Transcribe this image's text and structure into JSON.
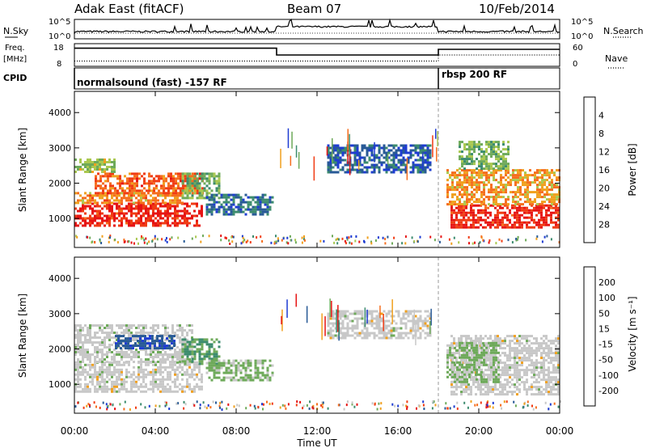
{
  "header": {
    "station": "Adak East (fitACF)",
    "beam": "Beam 07",
    "date": "10/Feb/2014"
  },
  "strip_labels": {
    "nsky": "N.Sky",
    "nsearch": "N.Search",
    "freq_line1": "Freq.",
    "freq_line2": "[MHz]",
    "nave": "Nave",
    "cpid": "CPID",
    "nsky_tick_hi": "10^5",
    "nsky_tick_lo": "10^0",
    "nsearch_tick_hi": "10^5",
    "nsearch_tick_lo": "10^0",
    "freq_tick_hi": "18",
    "freq_tick_lo": "8",
    "nave_tick_hi": "60",
    "nave_tick_lo": "0",
    "cpid_mode_1": "normalsound (fast) -157 RF",
    "cpid_mode_2": "rbsp 200 RF"
  },
  "colors": {
    "power_scale": [
      "#1e3cd2",
      "#285a96",
      "#3c8c6e",
      "#6eaa5a",
      "#aac850",
      "#f0a01e",
      "#f56e1e",
      "#f03c14",
      "#e61414"
    ],
    "velocity_scale": [
      "#1e3cd2",
      "#285a96",
      "#3c8c6e",
      "#6eaa5a",
      "#c8c8c8",
      "#f0a01e",
      "#f56e1e",
      "#f03c14",
      "#e61414"
    ]
  },
  "chart_data": [
    {
      "type": "line",
      "name": "sky_noise_and_freq_strips",
      "x_unit": "hours UT",
      "xlim": [
        0,
        24
      ],
      "freq_mhz": {
        "segments": [
          {
            "x_start": 0.0,
            "x_end": 10.0,
            "value": 16.0
          },
          {
            "x_start": 10.0,
            "x_end": 18.0,
            "value": 13.0
          },
          {
            "x_start": 18.0,
            "x_end": 24.0,
            "value": 15.5
          }
        ],
        "ylim": [
          8,
          18
        ]
      },
      "nave": {
        "segments": [
          {
            "x_start": 0.0,
            "x_end": 18.0,
            "value": 14
          },
          {
            "x_start": 18.0,
            "x_end": 24.0,
            "value": 30
          }
        ],
        "ylim": [
          0,
          60
        ]
      },
      "cpid_changes": [
        0.0,
        18.0
      ]
    },
    {
      "type": "heatmap",
      "name": "power",
      "title": "Power [dB]",
      "ylabel": "Slant Range [km]",
      "xlabel": "Time UT",
      "xlim": [
        0,
        24
      ],
      "ylim": [
        180,
        4600
      ],
      "x_ticks": [
        "00:00",
        "04:00",
        "08:00",
        "12:00",
        "16:00",
        "20:00",
        "00:00"
      ],
      "y_ticks": [
        1000,
        2000,
        3000,
        4000
      ],
      "colorbar": {
        "label": "Power [dB]",
        "ticks": [
          "4",
          "8",
          "12",
          "16",
          "20",
          "24",
          "28"
        ],
        "range": [
          0,
          30
        ]
      },
      "regions": [
        {
          "t_start": 0.0,
          "t_end": 6.3,
          "r_low": 800,
          "r_high": 1450,
          "value": 27
        },
        {
          "t_start": 0.0,
          "t_end": 5.3,
          "r_low": 1450,
          "r_high": 1750,
          "value": 20
        },
        {
          "t_start": 1.0,
          "t_end": 6.3,
          "r_low": 1750,
          "r_high": 2300,
          "value": 23
        },
        {
          "t_start": 0.0,
          "t_end": 2.0,
          "r_low": 2300,
          "r_high": 2700,
          "value": 14
        },
        {
          "t_start": 5.3,
          "t_end": 7.2,
          "r_low": 1600,
          "r_high": 2300,
          "value": 12
        },
        {
          "t_start": 6.5,
          "t_end": 9.8,
          "r_low": 1100,
          "r_high": 1700,
          "value": 6
        },
        {
          "t_start": 12.5,
          "t_end": 17.6,
          "r_low": 2300,
          "r_high": 3100,
          "value": 5
        },
        {
          "t_start": 18.6,
          "t_end": 24.0,
          "r_low": 750,
          "r_high": 1400,
          "value": 27
        },
        {
          "t_start": 18.4,
          "t_end": 24.0,
          "r_low": 1400,
          "r_high": 2400,
          "value": 19
        },
        {
          "t_start": 19.0,
          "t_end": 21.5,
          "r_low": 2400,
          "r_high": 3200,
          "value": 12
        }
      ]
    },
    {
      "type": "heatmap",
      "name": "velocity",
      "title": "Velocity [m s-1]",
      "ylabel": "Slant Range [km]",
      "xlabel": "Time UT",
      "xlim": [
        0,
        24
      ],
      "ylim": [
        180,
        4600
      ],
      "x_ticks": [
        "00:00",
        "04:00",
        "08:00",
        "12:00",
        "16:00",
        "20:00",
        "00:00"
      ],
      "y_ticks": [
        1000,
        2000,
        3000,
        4000
      ],
      "colorbar": {
        "label": "Velocity [m s-1]",
        "ticks": [
          "200",
          "100",
          "50",
          "15",
          "-15",
          "-50",
          "-100",
          "-200"
        ],
        "range": [
          -250,
          250
        ]
      },
      "regions": [
        {
          "t_start": 0.0,
          "t_end": 6.3,
          "r_low": 800,
          "r_high": 1650,
          "value": 0
        },
        {
          "t_start": 0.0,
          "t_end": 5.8,
          "r_low": 1650,
          "r_high": 2700,
          "value": 5
        },
        {
          "t_start": 2.0,
          "t_end": 5.0,
          "r_low": 2000,
          "r_high": 2400,
          "value": 180
        },
        {
          "t_start": 5.3,
          "t_end": 7.2,
          "r_low": 1600,
          "r_high": 2300,
          "value": 80
        },
        {
          "t_start": 6.5,
          "t_end": 9.8,
          "r_low": 1100,
          "r_high": 1700,
          "value": 40
        },
        {
          "t_start": 12.5,
          "t_end": 17.6,
          "r_low": 2300,
          "r_high": 3100,
          "value": 0
        },
        {
          "t_start": 18.6,
          "t_end": 24.0,
          "r_low": 750,
          "r_high": 2400,
          "value": 0
        },
        {
          "t_start": 18.4,
          "t_end": 21.0,
          "r_low": 1100,
          "r_high": 2200,
          "value": 40
        }
      ]
    }
  ],
  "axes": {
    "xlabel": "Time UT",
    "ylabel": "Slant Range [km]",
    "cbar_power_label": "Power [dB]",
    "cbar_vel_label": "Velocity [m s⁻¹]"
  }
}
